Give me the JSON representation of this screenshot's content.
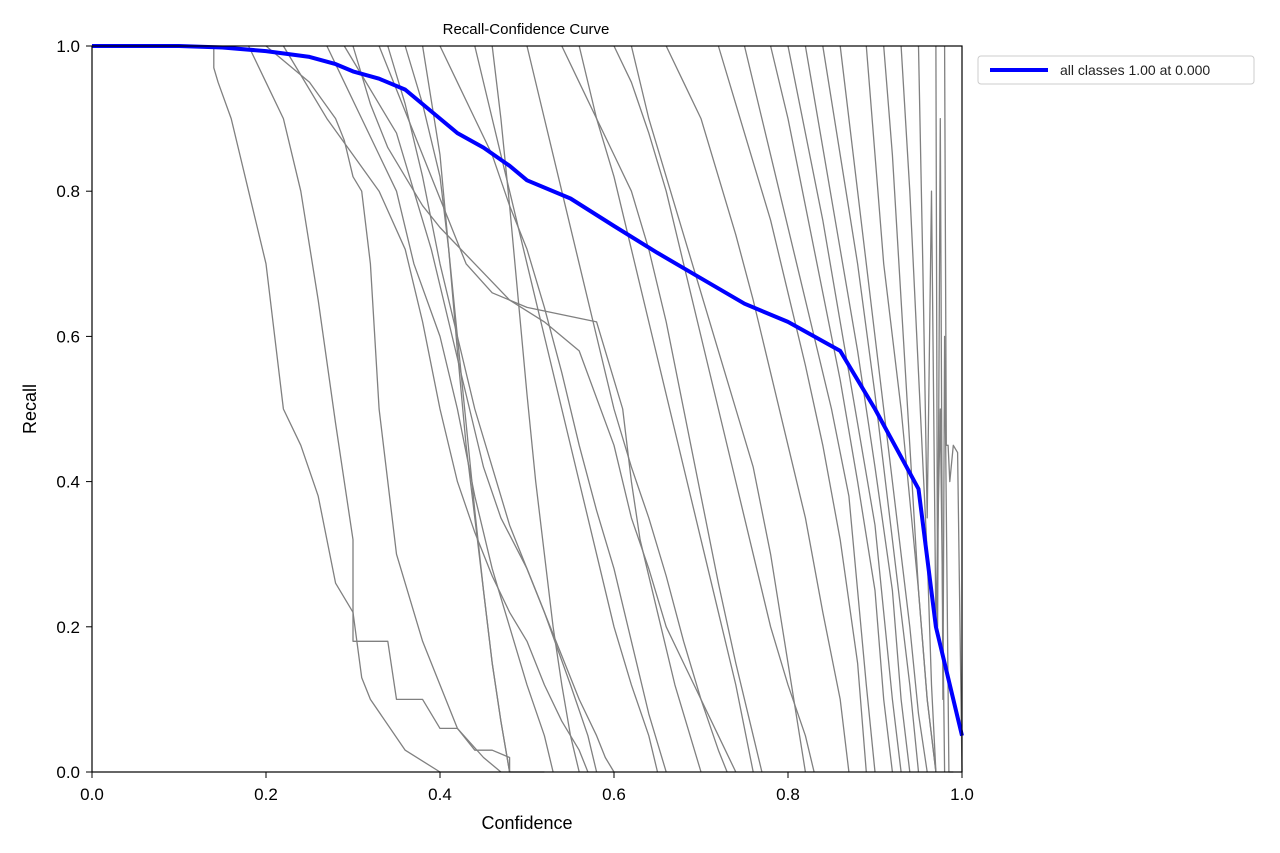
{
  "chart_data": {
    "type": "line",
    "title": "Recall-Confidence Curve",
    "xlabel": "Confidence",
    "ylabel": "Recall",
    "xlim": [
      0,
      1
    ],
    "ylim": [
      0,
      1
    ],
    "x_ticks": [
      "0.0",
      "0.2",
      "0.4",
      "0.6",
      "0.8",
      "1.0"
    ],
    "y_ticks": [
      "0.0",
      "0.2",
      "0.4",
      "0.6",
      "0.8",
      "1.0"
    ],
    "grid": false,
    "legend_position": "outside-top-right",
    "colors": {
      "class_curves": "#808080",
      "all_classes": "#0000ff"
    },
    "series": [
      {
        "name": "all classes 1.00 at 0.000",
        "x": [
          0.0,
          0.1,
          0.15,
          0.2,
          0.25,
          0.28,
          0.3,
          0.33,
          0.36,
          0.38,
          0.4,
          0.42,
          0.45,
          0.48,
          0.5,
          0.55,
          0.6,
          0.65,
          0.7,
          0.75,
          0.8,
          0.83,
          0.86,
          0.9,
          0.95,
          0.97,
          0.99,
          1.0
        ],
        "y": [
          1.0,
          1.0,
          0.998,
          0.993,
          0.985,
          0.975,
          0.965,
          0.955,
          0.94,
          0.92,
          0.9,
          0.88,
          0.86,
          0.835,
          0.815,
          0.79,
          0.752,
          0.715,
          0.68,
          0.645,
          0.62,
          0.6,
          0.58,
          0.5,
          0.39,
          0.2,
          0.1,
          0.05
        ]
      },
      {
        "x": [
          0.14,
          0.14,
          0.145,
          0.16,
          0.17,
          0.18,
          0.19,
          0.2,
          0.21,
          0.22,
          0.24,
          0.26,
          0.28,
          0.3,
          0.31,
          0.32,
          0.36,
          0.4
        ],
        "y": [
          1.0,
          0.97,
          0.95,
          0.9,
          0.85,
          0.8,
          0.75,
          0.7,
          0.6,
          0.5,
          0.45,
          0.38,
          0.26,
          0.22,
          0.13,
          0.1,
          0.03,
          0.0
        ]
      },
      {
        "x": [
          0.18,
          0.2,
          0.22,
          0.24,
          0.26,
          0.28,
          0.3,
          0.3,
          0.34,
          0.35,
          0.38,
          0.4,
          0.42,
          0.44,
          0.46,
          0.48,
          0.48,
          0.5,
          0.52
        ],
        "y": [
          1.0,
          0.95,
          0.9,
          0.8,
          0.65,
          0.48,
          0.32,
          0.18,
          0.18,
          0.1,
          0.1,
          0.06,
          0.06,
          0.03,
          0.03,
          0.02,
          0.0,
          0.0,
          0.0
        ]
      },
      {
        "x": [
          0.2,
          0.22,
          0.25,
          0.28,
          0.29,
          0.3,
          0.31,
          0.32,
          0.33,
          0.35,
          0.38,
          0.4,
          0.42,
          0.45,
          0.47
        ],
        "y": [
          1.0,
          0.98,
          0.95,
          0.9,
          0.87,
          0.82,
          0.8,
          0.7,
          0.5,
          0.3,
          0.18,
          0.12,
          0.06,
          0.02,
          0.0
        ]
      },
      {
        "x": [
          0.22,
          0.24,
          0.27,
          0.3,
          0.33,
          0.36,
          0.38,
          0.4,
          0.42,
          0.44,
          0.46,
          0.48,
          0.5,
          0.52,
          0.54,
          0.56,
          0.57
        ],
        "y": [
          1.0,
          0.96,
          0.9,
          0.85,
          0.8,
          0.72,
          0.62,
          0.5,
          0.4,
          0.33,
          0.27,
          0.22,
          0.18,
          0.12,
          0.07,
          0.03,
          0.0
        ]
      },
      {
        "x": [
          0.27,
          0.29,
          0.31,
          0.33,
          0.35,
          0.37,
          0.4,
          0.42,
          0.44,
          0.46,
          0.48,
          0.5,
          0.52,
          0.53
        ],
        "y": [
          1.0,
          0.95,
          0.9,
          0.85,
          0.8,
          0.7,
          0.6,
          0.5,
          0.38,
          0.28,
          0.2,
          0.12,
          0.05,
          0.0
        ]
      },
      {
        "x": [
          0.29,
          0.31,
          0.33,
          0.35,
          0.37,
          0.39,
          0.41,
          0.43,
          0.45,
          0.47,
          0.5,
          0.52,
          0.55,
          0.57,
          0.58
        ],
        "y": [
          1.0,
          0.96,
          0.92,
          0.88,
          0.8,
          0.72,
          0.62,
          0.52,
          0.42,
          0.35,
          0.28,
          0.22,
          0.12,
          0.05,
          0.0
        ]
      },
      {
        "x": [
          0.3,
          0.32,
          0.34,
          0.36,
          0.38,
          0.4,
          0.44,
          0.48,
          0.52,
          0.56,
          0.6,
          0.62,
          0.64,
          0.66,
          0.68,
          0.7,
          0.72,
          0.74
        ],
        "y": [
          1.0,
          0.92,
          0.86,
          0.82,
          0.78,
          0.75,
          0.7,
          0.65,
          0.62,
          0.58,
          0.45,
          0.35,
          0.28,
          0.2,
          0.15,
          0.1,
          0.05,
          0.0
        ]
      },
      {
        "x": [
          0.33,
          0.35,
          0.37,
          0.39,
          0.41,
          0.43,
          0.46,
          0.5,
          0.54,
          0.58,
          0.61,
          0.62,
          0.63,
          0.65,
          0.67,
          0.7
        ],
        "y": [
          1.0,
          0.94,
          0.88,
          0.82,
          0.76,
          0.7,
          0.66,
          0.64,
          0.63,
          0.62,
          0.5,
          0.4,
          0.32,
          0.22,
          0.12,
          0.0
        ]
      },
      {
        "x": [
          0.34,
          0.36,
          0.38,
          0.4,
          0.42,
          0.44,
          0.46,
          0.48,
          0.5,
          0.52,
          0.54,
          0.56,
          0.58,
          0.59,
          0.6
        ],
        "y": [
          1.0,
          0.92,
          0.82,
          0.7,
          0.6,
          0.5,
          0.42,
          0.34,
          0.28,
          0.22,
          0.16,
          0.1,
          0.05,
          0.02,
          0.0
        ]
      },
      {
        "x": [
          0.36,
          0.38,
          0.4,
          0.41,
          0.42,
          0.43,
          0.44,
          0.45,
          0.46,
          0.47,
          0.48
        ],
        "y": [
          1.0,
          0.92,
          0.82,
          0.72,
          0.6,
          0.48,
          0.36,
          0.25,
          0.15,
          0.07,
          0.0
        ]
      },
      {
        "x": [
          0.38,
          0.4,
          0.41,
          0.42,
          0.43,
          0.44,
          0.45,
          0.46,
          0.47,
          0.48
        ],
        "y": [
          1.0,
          0.85,
          0.72,
          0.58,
          0.45,
          0.35,
          0.25,
          0.15,
          0.07,
          0.0
        ]
      },
      {
        "x": [
          0.4,
          0.42,
          0.44,
          0.46,
          0.48,
          0.5,
          0.52,
          0.54,
          0.56,
          0.58,
          0.6,
          0.62,
          0.64,
          0.66
        ],
        "y": [
          1.0,
          0.95,
          0.9,
          0.85,
          0.78,
          0.72,
          0.64,
          0.55,
          0.45,
          0.36,
          0.28,
          0.18,
          0.08,
          0.0
        ]
      },
      {
        "x": [
          0.44,
          0.46,
          0.48,
          0.5,
          0.52,
          0.54,
          0.56,
          0.58,
          0.6,
          0.62,
          0.64,
          0.65
        ],
        "y": [
          1.0,
          0.9,
          0.8,
          0.7,
          0.6,
          0.5,
          0.4,
          0.3,
          0.2,
          0.12,
          0.05,
          0.0
        ]
      },
      {
        "x": [
          0.46,
          0.47,
          0.48,
          0.49,
          0.5,
          0.51,
          0.52,
          0.53,
          0.54,
          0.55,
          0.56
        ],
        "y": [
          1.0,
          0.9,
          0.78,
          0.65,
          0.52,
          0.4,
          0.3,
          0.2,
          0.12,
          0.05,
          0.0
        ]
      },
      {
        "x": [
          0.5,
          0.52,
          0.54,
          0.56,
          0.58,
          0.6,
          0.62,
          0.64,
          0.66,
          0.68,
          0.7,
          0.72,
          0.73
        ],
        "y": [
          1.0,
          0.9,
          0.8,
          0.7,
          0.6,
          0.5,
          0.42,
          0.35,
          0.27,
          0.18,
          0.1,
          0.03,
          0.0
        ]
      },
      {
        "x": [
          0.54,
          0.56,
          0.58,
          0.6,
          0.62,
          0.64,
          0.66,
          0.68,
          0.7,
          0.72,
          0.74,
          0.76,
          0.77
        ],
        "y": [
          1.0,
          0.95,
          0.9,
          0.85,
          0.8,
          0.72,
          0.62,
          0.5,
          0.38,
          0.26,
          0.15,
          0.05,
          0.0
        ]
      },
      {
        "x": [
          0.56,
          0.58,
          0.6,
          0.62,
          0.64,
          0.66,
          0.68,
          0.7,
          0.72,
          0.74,
          0.76
        ],
        "y": [
          1.0,
          0.9,
          0.82,
          0.72,
          0.62,
          0.52,
          0.42,
          0.32,
          0.22,
          0.12,
          0.0
        ]
      },
      {
        "x": [
          0.6,
          0.62,
          0.64,
          0.66,
          0.68,
          0.7,
          0.72,
          0.74,
          0.76,
          0.78,
          0.8,
          0.82,
          0.83
        ],
        "y": [
          1.0,
          0.95,
          0.88,
          0.8,
          0.7,
          0.6,
          0.5,
          0.4,
          0.3,
          0.2,
          0.12,
          0.05,
          0.0
        ]
      },
      {
        "x": [
          0.62,
          0.64,
          0.66,
          0.68,
          0.7,
          0.72,
          0.74,
          0.76,
          0.78,
          0.8,
          0.82
        ],
        "y": [
          1.0,
          0.9,
          0.82,
          0.74,
          0.66,
          0.58,
          0.5,
          0.42,
          0.3,
          0.15,
          0.0
        ]
      },
      {
        "x": [
          0.66,
          0.68,
          0.7,
          0.72,
          0.74,
          0.76,
          0.78,
          0.8,
          0.82,
          0.84,
          0.86,
          0.87
        ],
        "y": [
          1.0,
          0.95,
          0.9,
          0.82,
          0.74,
          0.65,
          0.55,
          0.45,
          0.35,
          0.22,
          0.1,
          0.0
        ]
      },
      {
        "x": [
          0.72,
          0.74,
          0.76,
          0.78,
          0.8,
          0.82,
          0.84,
          0.86,
          0.88,
          0.89
        ],
        "y": [
          1.0,
          0.92,
          0.84,
          0.76,
          0.66,
          0.56,
          0.45,
          0.32,
          0.15,
          0.0
        ]
      },
      {
        "x": [
          0.75,
          0.77,
          0.79,
          0.81,
          0.83,
          0.85,
          0.87,
          0.88,
          0.89,
          0.9
        ],
        "y": [
          1.0,
          0.9,
          0.8,
          0.7,
          0.6,
          0.5,
          0.38,
          0.25,
          0.12,
          0.0
        ]
      },
      {
        "x": [
          0.78,
          0.8,
          0.82,
          0.84,
          0.86,
          0.88,
          0.9,
          0.91,
          0.92
        ],
        "y": [
          1.0,
          0.9,
          0.78,
          0.66,
          0.54,
          0.4,
          0.25,
          0.1,
          0.0
        ]
      },
      {
        "x": [
          0.8,
          0.82,
          0.84,
          0.86,
          0.88,
          0.9,
          0.91,
          0.92,
          0.93
        ],
        "y": [
          1.0,
          0.88,
          0.76,
          0.62,
          0.48,
          0.34,
          0.22,
          0.1,
          0.0
        ]
      },
      {
        "x": [
          0.82,
          0.84,
          0.86,
          0.88,
          0.9,
          0.92,
          0.93,
          0.94
        ],
        "y": [
          1.0,
          0.86,
          0.72,
          0.58,
          0.42,
          0.25,
          0.1,
          0.0
        ]
      },
      {
        "x": [
          0.84,
          0.86,
          0.88,
          0.9,
          0.92,
          0.94,
          0.95
        ],
        "y": [
          1.0,
          0.85,
          0.7,
          0.52,
          0.32,
          0.12,
          0.0
        ]
      },
      {
        "x": [
          0.86,
          0.88,
          0.9,
          0.92,
          0.94,
          0.95,
          0.96
        ],
        "y": [
          1.0,
          0.8,
          0.6,
          0.4,
          0.2,
          0.08,
          0.0
        ]
      },
      {
        "x": [
          0.89,
          0.9,
          0.91,
          0.93,
          0.95,
          0.96,
          0.97
        ],
        "y": [
          1.0,
          0.85,
          0.7,
          0.5,
          0.25,
          0.1,
          0.0
        ]
      },
      {
        "x": [
          0.91,
          0.92,
          0.93,
          0.94,
          0.95,
          0.96,
          0.97
        ],
        "y": [
          1.0,
          0.85,
          0.65,
          0.45,
          0.25,
          0.1,
          0.0
        ]
      },
      {
        "x": [
          0.93,
          0.94,
          0.95,
          0.96,
          0.965,
          0.97
        ],
        "y": [
          1.0,
          0.8,
          0.55,
          0.3,
          0.12,
          0.0
        ]
      },
      {
        "x": [
          0.95,
          0.955,
          0.96,
          0.965,
          0.97,
          0.975,
          0.98
        ],
        "y": [
          1.0,
          0.7,
          0.35,
          0.8,
          0.2,
          0.5,
          0.0
        ]
      },
      {
        "x": [
          0.97,
          0.972,
          0.975,
          0.978,
          0.98,
          0.985,
          0.99
        ],
        "y": [
          1.0,
          0.2,
          0.9,
          0.1,
          0.6,
          0.0,
          0.0
        ]
      },
      {
        "x": [
          0.98,
          0.982,
          0.984,
          0.986,
          0.99,
          0.995,
          1.0
        ],
        "y": [
          1.0,
          0.45,
          0.45,
          0.4,
          0.45,
          0.44,
          0.0
        ]
      }
    ]
  }
}
